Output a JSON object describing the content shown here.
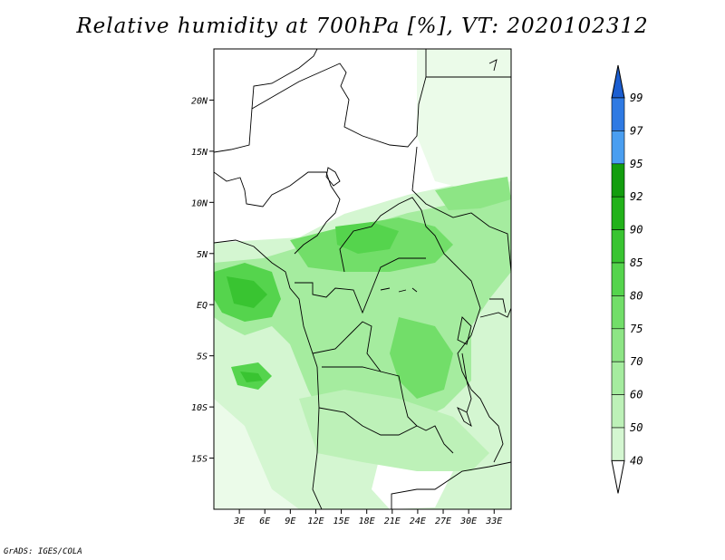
{
  "title": "Relative humidity at 700hPa [%], VT: 2020102312",
  "credit": "GrADS: IGES/COLA",
  "map": {
    "lon_range": [
      0,
      35
    ],
    "lat_range": [
      -20,
      25
    ],
    "lon_ticks": [
      "3E",
      "6E",
      "9E",
      "12E",
      "15E",
      "18E",
      "21E",
      "24E",
      "27E",
      "30E",
      "33E"
    ],
    "lat_ticks": [
      "20N",
      "15N",
      "10N",
      "5N",
      "EQ",
      "5S",
      "10S",
      "15S"
    ]
  },
  "colorbar": {
    "levels": [
      "40",
      "50",
      "60",
      "70",
      "75",
      "80",
      "85",
      "90",
      "92",
      "95",
      "97",
      "99"
    ],
    "colors": [
      "#ebfbe9",
      "#d4f6d1",
      "#bdf1b8",
      "#a5ec9f",
      "#8de585",
      "#72de69",
      "#55d44d",
      "#39c431",
      "#22b21a",
      "#139d0e",
      "#4a9ef0",
      "#2f7ae3",
      "#1b5ed1"
    ]
  }
}
